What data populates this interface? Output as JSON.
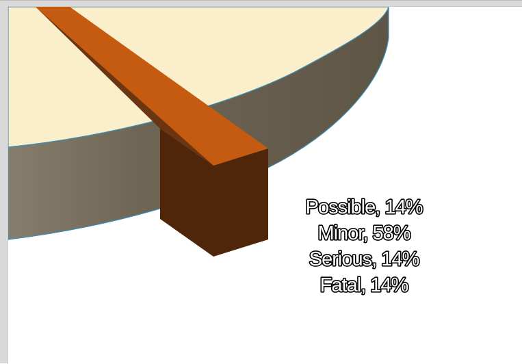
{
  "chart_data": {
    "type": "pie",
    "style": "3d-exploded",
    "categories": [
      "Possible",
      "Minor",
      "Serious",
      "Fatal"
    ],
    "values": [
      14,
      58,
      14,
      14
    ],
    "unit": "%",
    "labels": [
      "Possible, 14%",
      "Minor, 58%",
      "Serious, 14%",
      "Fatal, 14%"
    ],
    "colors": {
      "large_slice_top": "#FBEFCB",
      "large_slice_side": "#6B6152",
      "small_slice_top": "#C55A11",
      "small_slice_side": "#4F2609",
      "outline": "#3D8FB8"
    },
    "title": "",
    "legend": "none"
  }
}
